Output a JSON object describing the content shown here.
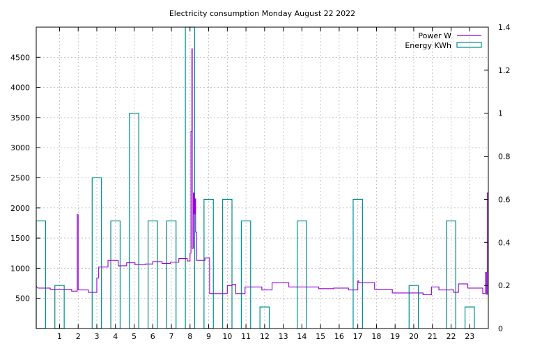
{
  "chart_data": {
    "type": "bar",
    "title": "Electricity consumption Monday August 22 2022",
    "xlabel": "",
    "ylabel": "",
    "y2label": "",
    "grid": true,
    "legend_position": "top-right",
    "xlim": [
      -0.25,
      24.0
    ],
    "ylim": [
      0,
      5000
    ],
    "y2lim": [
      0,
      1.4
    ],
    "x_ticks": [
      1,
      2,
      3,
      4,
      5,
      6,
      7,
      8,
      9,
      10,
      11,
      12,
      13,
      14,
      15,
      16,
      17,
      18,
      19,
      20,
      21,
      22,
      23
    ],
    "y_ticks": [
      500,
      1000,
      1500,
      2000,
      2500,
      3000,
      3500,
      4000,
      4500
    ],
    "y2_ticks": [
      0,
      0.2,
      0.4,
      0.6,
      0.8,
      1,
      1.2,
      1.4
    ],
    "series": [
      {
        "name": "Power W",
        "axis": "y",
        "color": "#9400d3",
        "style": "line",
        "points": [
          [
            -0.25,
            700
          ],
          [
            -0.15,
            670
          ],
          [
            0.5,
            670
          ],
          [
            0.5,
            650
          ],
          [
            1.65,
            650
          ],
          [
            1.65,
            620
          ],
          [
            1.95,
            620
          ],
          [
            1.95,
            1890
          ],
          [
            2.0,
            1890
          ],
          [
            2.0,
            640
          ],
          [
            2.55,
            640
          ],
          [
            2.55,
            600
          ],
          [
            3.0,
            600
          ],
          [
            3.0,
            840
          ],
          [
            3.1,
            840
          ],
          [
            3.1,
            1020
          ],
          [
            3.6,
            1020
          ],
          [
            3.6,
            1130
          ],
          [
            4.15,
            1130
          ],
          [
            4.15,
            1040
          ],
          [
            4.6,
            1040
          ],
          [
            4.6,
            1090
          ],
          [
            5.05,
            1090
          ],
          [
            5.05,
            1060
          ],
          [
            5.6,
            1060
          ],
          [
            5.6,
            1070
          ],
          [
            6.0,
            1070
          ],
          [
            6.0,
            1110
          ],
          [
            6.5,
            1110
          ],
          [
            6.5,
            1080
          ],
          [
            6.95,
            1080
          ],
          [
            6.95,
            1100
          ],
          [
            7.4,
            1100
          ],
          [
            7.4,
            1160
          ],
          [
            7.85,
            1160
          ],
          [
            7.85,
            1120
          ],
          [
            8.0,
            1120
          ],
          [
            8.0,
            1250
          ],
          [
            8.05,
            1250
          ],
          [
            8.05,
            3270
          ],
          [
            8.1,
            3270
          ],
          [
            8.1,
            4640
          ],
          [
            8.12,
            4640
          ],
          [
            8.12,
            1330
          ],
          [
            8.18,
            1330
          ],
          [
            8.18,
            2250
          ],
          [
            8.22,
            2250
          ],
          [
            8.22,
            1900
          ],
          [
            8.26,
            1900
          ],
          [
            8.26,
            2150
          ],
          [
            8.3,
            2150
          ],
          [
            8.3,
            1600
          ],
          [
            8.35,
            1600
          ],
          [
            8.35,
            1130
          ],
          [
            8.8,
            1130
          ],
          [
            8.8,
            1170
          ],
          [
            9.05,
            1170
          ],
          [
            9.05,
            580
          ],
          [
            10.0,
            580
          ],
          [
            10.0,
            710
          ],
          [
            10.25,
            710
          ],
          [
            10.25,
            730
          ],
          [
            10.45,
            730
          ],
          [
            10.45,
            580
          ],
          [
            10.95,
            580
          ],
          [
            10.95,
            690
          ],
          [
            11.85,
            690
          ],
          [
            11.85,
            640
          ],
          [
            12.4,
            640
          ],
          [
            12.4,
            760
          ],
          [
            13.3,
            760
          ],
          [
            13.3,
            690
          ],
          [
            14.9,
            690
          ],
          [
            14.9,
            660
          ],
          [
            15.7,
            660
          ],
          [
            15.7,
            670
          ],
          [
            16.5,
            670
          ],
          [
            16.5,
            640
          ],
          [
            17.0,
            640
          ],
          [
            17.0,
            790
          ],
          [
            17.05,
            790
          ],
          [
            17.05,
            760
          ],
          [
            17.9,
            760
          ],
          [
            17.9,
            650
          ],
          [
            18.85,
            650
          ],
          [
            18.85,
            590
          ],
          [
            20.5,
            590
          ],
          [
            20.5,
            560
          ],
          [
            20.95,
            560
          ],
          [
            20.95,
            690
          ],
          [
            21.35,
            690
          ],
          [
            21.35,
            640
          ],
          [
            22.15,
            640
          ],
          [
            22.15,
            600
          ],
          [
            22.4,
            600
          ],
          [
            22.4,
            740
          ],
          [
            22.9,
            740
          ],
          [
            22.9,
            670
          ],
          [
            23.7,
            670
          ],
          [
            23.7,
            580
          ],
          [
            23.85,
            580
          ],
          [
            23.85,
            930
          ],
          [
            23.9,
            930
          ],
          [
            23.9,
            570
          ],
          [
            23.95,
            570
          ],
          [
            23.95,
            2250
          ],
          [
            24.0,
            2250
          ]
        ]
      },
      {
        "name": "Energy KWh",
        "axis": "y2",
        "color": "#008b8b",
        "style": "bars",
        "bar_width": 0.5,
        "x": [
          0,
          1,
          2,
          3,
          4,
          5,
          6,
          7,
          8,
          9,
          10,
          11,
          12,
          13,
          14,
          15,
          16,
          17,
          18,
          19,
          20,
          21,
          22,
          23
        ],
        "values": [
          0.5,
          0.2,
          0,
          0.7,
          0.5,
          1.0,
          0.5,
          0.5,
          1.4,
          0.6,
          0.6,
          0.5,
          0.1,
          0,
          0.5,
          0,
          0,
          0.6,
          0,
          0,
          0.2,
          0,
          0.5,
          0.1
        ]
      }
    ]
  }
}
